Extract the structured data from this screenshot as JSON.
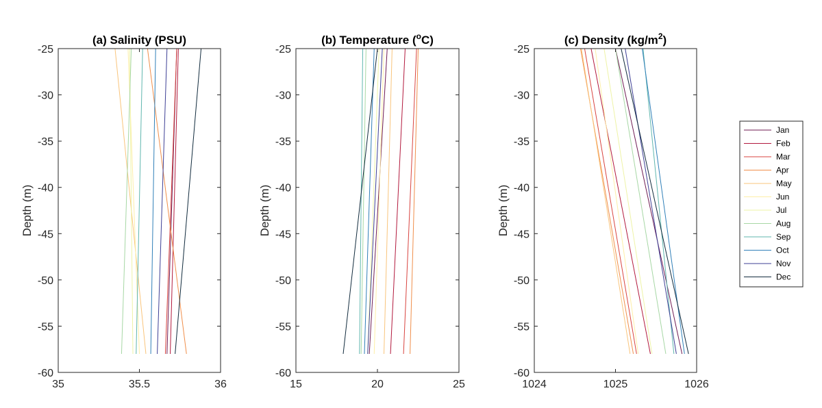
{
  "chart_data": [
    {
      "type": "line",
      "title": "(a) Salinity (PSU)",
      "ylabel": "Depth (m)",
      "xlabel": "",
      "xlim": [
        35,
        36
      ],
      "ylim": [
        -60,
        -25
      ],
      "xticks": [
        "35",
        "35.5",
        "36"
      ],
      "yticks": [
        "-25",
        "-30",
        "-35",
        "-40",
        "-45",
        "-50",
        "-55",
        "-60"
      ],
      "series": [
        {
          "name": "Jan",
          "x": [
            35.73,
            35.67
          ],
          "y": [
            -25,
            -58
          ]
        },
        {
          "name": "Feb",
          "x": [
            35.74,
            35.69
          ],
          "y": [
            -25,
            -58
          ]
        },
        {
          "name": "Mar",
          "x": [
            35.73,
            35.66
          ],
          "y": [
            -25,
            -58
          ]
        },
        {
          "name": "Apr",
          "x": [
            35.55,
            35.79
          ],
          "y": [
            -25,
            -58
          ]
        },
        {
          "name": "May",
          "x": [
            35.35,
            35.54
          ],
          "y": [
            -25,
            -58
          ]
        },
        {
          "name": "Jun",
          "x": [
            35.43,
            35.5
          ],
          "y": [
            -25,
            -58
          ]
        },
        {
          "name": "Jul",
          "x": [
            35.44,
            35.46
          ],
          "y": [
            -25,
            -58
          ]
        },
        {
          "name": "Aug",
          "x": [
            35.45,
            35.39
          ],
          "y": [
            -25,
            -58
          ]
        },
        {
          "name": "Sep",
          "x": [
            35.52,
            35.48
          ],
          "y": [
            -25,
            -58
          ]
        },
        {
          "name": "Oct",
          "x": [
            35.6,
            35.57
          ],
          "y": [
            -25,
            -58
          ]
        },
        {
          "name": "Nov",
          "x": [
            35.67,
            35.61
          ],
          "y": [
            -25,
            -58
          ]
        },
        {
          "name": "Dec",
          "x": [
            35.88,
            35.72
          ],
          "y": [
            -25,
            -58
          ]
        }
      ]
    },
    {
      "type": "line",
      "title": "(b) Temperature (",
      "title_unit_base": "C)",
      "title_superscript": "o",
      "ylabel": "Depth (m)",
      "xlabel": "",
      "xlim": [
        15,
        25
      ],
      "ylim": [
        -60,
        -25
      ],
      "xticks": [
        "15",
        "20",
        "25"
      ],
      "yticks": [
        "-25",
        "-30",
        "-35",
        "-40",
        "-45",
        "-50",
        "-55",
        "-60"
      ],
      "series": [
        {
          "name": "Jan",
          "x": [
            20.6,
            19.5
          ],
          "y": [
            -25,
            -58
          ]
        },
        {
          "name": "Feb",
          "x": [
            21.7,
            20.8
          ],
          "y": [
            -25,
            -58
          ]
        },
        {
          "name": "Mar",
          "x": [
            22.4,
            21.6
          ],
          "y": [
            -25,
            -58
          ]
        },
        {
          "name": "Apr",
          "x": [
            22.5,
            22.0
          ],
          "y": [
            -25,
            -58
          ]
        },
        {
          "name": "May",
          "x": [
            20.9,
            20.4
          ],
          "y": [
            -25,
            -58
          ]
        },
        {
          "name": "Jun",
          "x": [
            20.4,
            19.8
          ],
          "y": [
            -25,
            -58
          ]
        },
        {
          "name": "Jul",
          "x": [
            20.1,
            19.4
          ],
          "y": [
            -25,
            -58
          ]
        },
        {
          "name": "Aug",
          "x": [
            19.3,
            19.0
          ],
          "y": [
            -25,
            -58
          ]
        },
        {
          "name": "Sep",
          "x": [
            19.1,
            18.9
          ],
          "y": [
            -25,
            -58
          ]
        },
        {
          "name": "Oct",
          "x": [
            19.8,
            19.2
          ],
          "y": [
            -25,
            -58
          ]
        },
        {
          "name": "Nov",
          "x": [
            20.3,
            19.4
          ],
          "y": [
            -25,
            -58
          ]
        },
        {
          "name": "Dec",
          "x": [
            20.0,
            17.9
          ],
          "y": [
            -25,
            -58
          ]
        }
      ]
    },
    {
      "type": "line",
      "title": "(c) Density (kg/m",
      "title_unit_base": ")",
      "title_superscript": "2",
      "ylabel": "Depth (m)",
      "xlabel": "",
      "xlim": [
        1024,
        1026
      ],
      "ylim": [
        -60,
        -25
      ],
      "xticks": [
        "1024",
        "1025",
        "1026"
      ],
      "yticks": [
        "-25",
        "-30",
        "-35",
        "-40",
        "-45",
        "-50",
        "-55",
        "-60"
      ],
      "series": [
        {
          "name": "Jan",
          "x": [
            1025.0,
            1025.82
          ],
          "y": [
            -25,
            -58
          ]
        },
        {
          "name": "Feb",
          "x": [
            1024.7,
            1025.43
          ],
          "y": [
            -25,
            -58
          ]
        },
        {
          "name": "Mar",
          "x": [
            1024.62,
            1025.26
          ],
          "y": [
            -25,
            -58
          ]
        },
        {
          "name": "Apr",
          "x": [
            1024.57,
            1025.22
          ],
          "y": [
            -25,
            -58
          ]
        },
        {
          "name": "May",
          "x": [
            1024.58,
            1025.18
          ],
          "y": [
            -25,
            -58
          ]
        },
        {
          "name": "Jun",
          "x": [
            1024.75,
            1025.28
          ],
          "y": [
            -25,
            -58
          ]
        },
        {
          "name": "Jul",
          "x": [
            1024.86,
            1025.45
          ],
          "y": [
            -25,
            -58
          ]
        },
        {
          "name": "Aug",
          "x": [
            1025.0,
            1025.62
          ],
          "y": [
            -25,
            -58
          ]
        },
        {
          "name": "Sep",
          "x": [
            1025.34,
            1025.72
          ],
          "y": [
            -25,
            -58
          ]
        },
        {
          "name": "Oct",
          "x": [
            1025.33,
            1025.85
          ],
          "y": [
            -25,
            -58
          ]
        },
        {
          "name": "Nov",
          "x": [
            1025.12,
            1025.75
          ],
          "y": [
            -25,
            -58
          ]
        },
        {
          "name": "Dec",
          "x": [
            1025.07,
            1025.9
          ],
          "y": [
            -25,
            -58
          ]
        }
      ]
    }
  ],
  "legend": {
    "placement": "right",
    "entries": [
      "Jan",
      "Feb",
      "Mar",
      "Apr",
      "May",
      "Jun",
      "Jul",
      "Aug",
      "Sep",
      "Oct",
      "Nov",
      "Dec"
    ]
  },
  "colors": {
    "Jan": "#6e1a52",
    "Feb": "#b2183c",
    "Mar": "#d8433f",
    "Apr": "#f08e4a",
    "May": "#f9c47b",
    "Jun": "#fdeea6",
    "Jul": "#eef3a6",
    "Aug": "#a6d7a4",
    "Sep": "#5fb6ae",
    "Oct": "#2f7fb8",
    "Nov": "#3d3f95",
    "Dec": "#102a3c"
  }
}
